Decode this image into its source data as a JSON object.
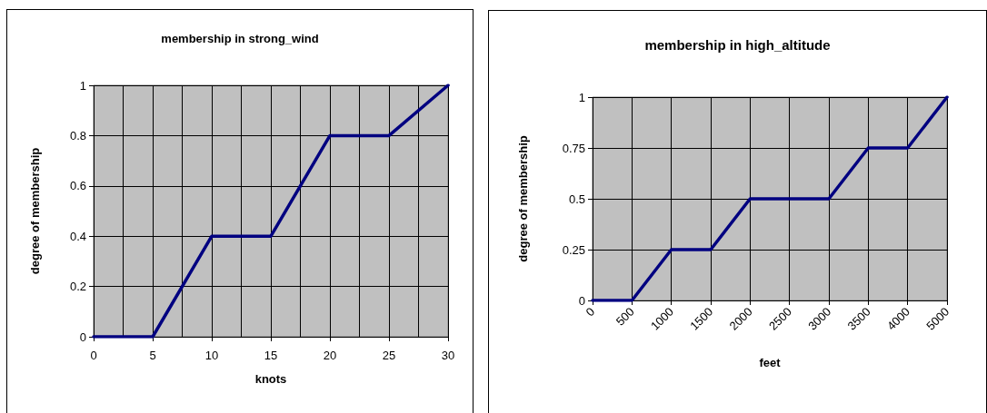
{
  "chart_data": [
    {
      "type": "line",
      "title": "membership in strong_wind",
      "xlabel": "knots",
      "ylabel": "degree of membership",
      "x": [
        0,
        5,
        10,
        15,
        20,
        25,
        30
      ],
      "series": [
        {
          "color": "#000080",
          "values": [
            0,
            0,
            0.4,
            0.4,
            0.8,
            0.8,
            1
          ]
        }
      ],
      "xlim": [
        0,
        30
      ],
      "xticks": [
        0,
        5,
        10,
        15,
        20,
        25,
        30
      ],
      "ylim": [
        0,
        1
      ],
      "yticks": [
        0,
        0.2,
        0.4,
        0.6,
        0.8,
        1
      ],
      "grid": true,
      "marker": "none"
    },
    {
      "type": "line",
      "title": "membership in high_altitude",
      "xlabel": "feet",
      "ylabel": "degree of membership",
      "categories": [
        "0",
        "500",
        "1000",
        "1500",
        "2000",
        "2500",
        "3000",
        "3500",
        "4000",
        "5000"
      ],
      "series": [
        {
          "color": "#000080",
          "values": [
            0,
            0,
            0.25,
            0.25,
            0.5,
            0.5,
            0.5,
            0.75,
            0.75,
            1
          ]
        }
      ],
      "ylim": [
        0,
        1
      ],
      "yticks": [
        0,
        0.25,
        0.5,
        0.75,
        1
      ],
      "grid": true,
      "marker": "none"
    }
  ]
}
